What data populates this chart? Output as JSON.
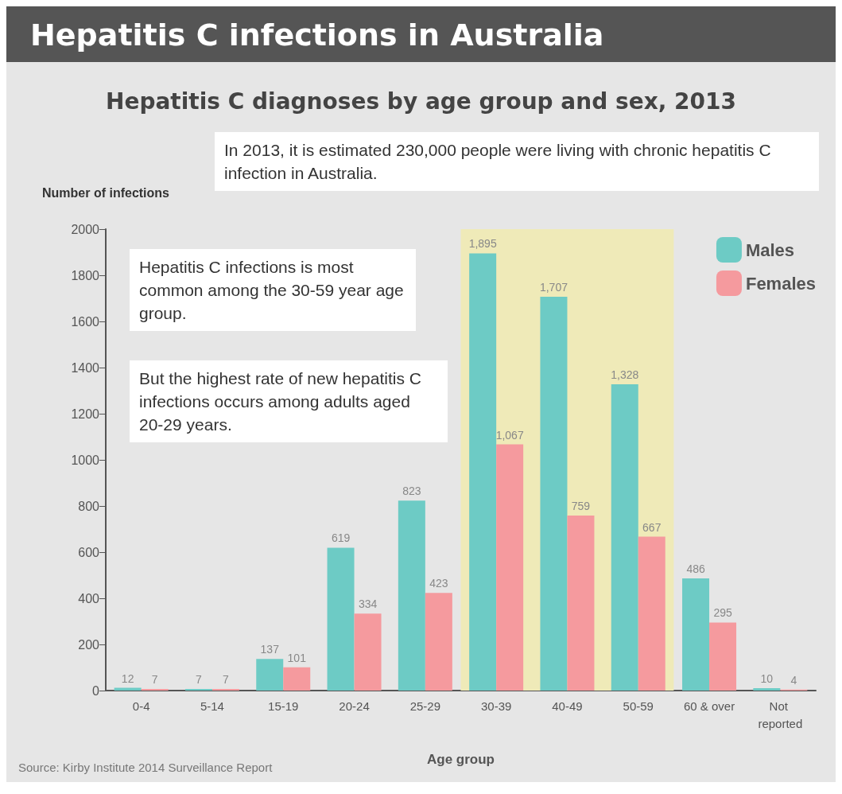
{
  "chart_data": {
    "type": "bar",
    "title": "Hepatitis C infections in Australia",
    "subtitle": "Hepatitis C diagnoses by age group and sex, 2013",
    "ylabel": "Number of infections",
    "xlabel": "Age group",
    "annotations": [
      "In 2013, it is estimated 230,000 people were living with chronic hepatitis C infection in Australia.",
      "Hepatitis C infections is most common among the 30-59 year age group.",
      "But the highest rate of new hepatitis C infections occurs among adults aged 20-29 years.",
      "Source: Kirby Institute 2014 Surveillance Report"
    ],
    "categories": [
      "0-4",
      "5-14",
      "15-19",
      "20-24",
      "25-29",
      "30-39",
      "40-49",
      "50-59",
      "60 & over",
      "Not reported"
    ],
    "series": [
      {
        "name": "Males",
        "color": "#6dcbc5",
        "values": [
          12,
          7,
          137,
          619,
          823,
          1895,
          1707,
          1328,
          486,
          10
        ],
        "value_labels": [
          "12",
          "7",
          "137",
          "619",
          "823",
          "1,895",
          "1,707",
          "1,328",
          "486",
          "10"
        ]
      },
      {
        "name": "Females",
        "color": "#f59a9e",
        "values": [
          7,
          7,
          101,
          334,
          423,
          1067,
          759,
          667,
          295,
          4
        ],
        "value_labels": [
          "7",
          "7",
          "101",
          "334",
          "423",
          "1,067",
          "759",
          "667",
          "295",
          "4"
        ]
      }
    ],
    "bands": [
      {
        "axis": "x",
        "from": "30-39",
        "to": "50-59",
        "color": "#efeab8"
      }
    ],
    "ylim": [
      0,
      2000
    ],
    "yticks": [
      0,
      200,
      400,
      600,
      800,
      1000,
      1200,
      1400,
      1600,
      1800,
      2000
    ],
    "legend": "top right",
    "grid": false
  }
}
